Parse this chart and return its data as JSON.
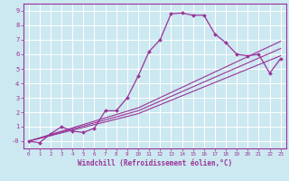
{
  "bg_color": "#cce8f0",
  "grid_color": "#ffffff",
  "line_color": "#993399",
  "spine_color": "#993399",
  "xlabel": "Windchill (Refroidissement éolien,°C)",
  "xlim": [
    -0.5,
    23.5
  ],
  "ylim": [
    -0.5,
    9.5
  ],
  "xticks": [
    0,
    1,
    2,
    3,
    4,
    5,
    6,
    7,
    8,
    9,
    10,
    11,
    12,
    13,
    14,
    15,
    16,
    17,
    18,
    19,
    20,
    21,
    22,
    23
  ],
  "yticks": [
    0,
    1,
    2,
    3,
    4,
    5,
    6,
    7,
    8,
    9
  ],
  "ytick_labels": [
    "-0",
    "1",
    "2",
    "3",
    "4",
    "5",
    "6",
    "7",
    "8",
    "9"
  ],
  "curve1_x": [
    0,
    1,
    2,
    3,
    4,
    5,
    6,
    7,
    8,
    9,
    10,
    11,
    12,
    13,
    14,
    15,
    16,
    17,
    18,
    19,
    20,
    21,
    22,
    23
  ],
  "curve1_y": [
    0.0,
    -0.1,
    0.5,
    1.0,
    0.7,
    0.6,
    0.9,
    2.1,
    2.1,
    3.0,
    4.5,
    6.2,
    7.0,
    8.8,
    8.85,
    8.7,
    8.7,
    7.4,
    6.8,
    6.0,
    5.9,
    6.0,
    4.7,
    5.7
  ],
  "line2_x": [
    0,
    10,
    23
  ],
  "line2_y": [
    0.0,
    2.3,
    6.9
  ],
  "line3_x": [
    0,
    10,
    23
  ],
  "line3_y": [
    0.0,
    2.1,
    6.4
  ],
  "line4_x": [
    0,
    10,
    23
  ],
  "line4_y": [
    0.0,
    1.9,
    5.9
  ]
}
